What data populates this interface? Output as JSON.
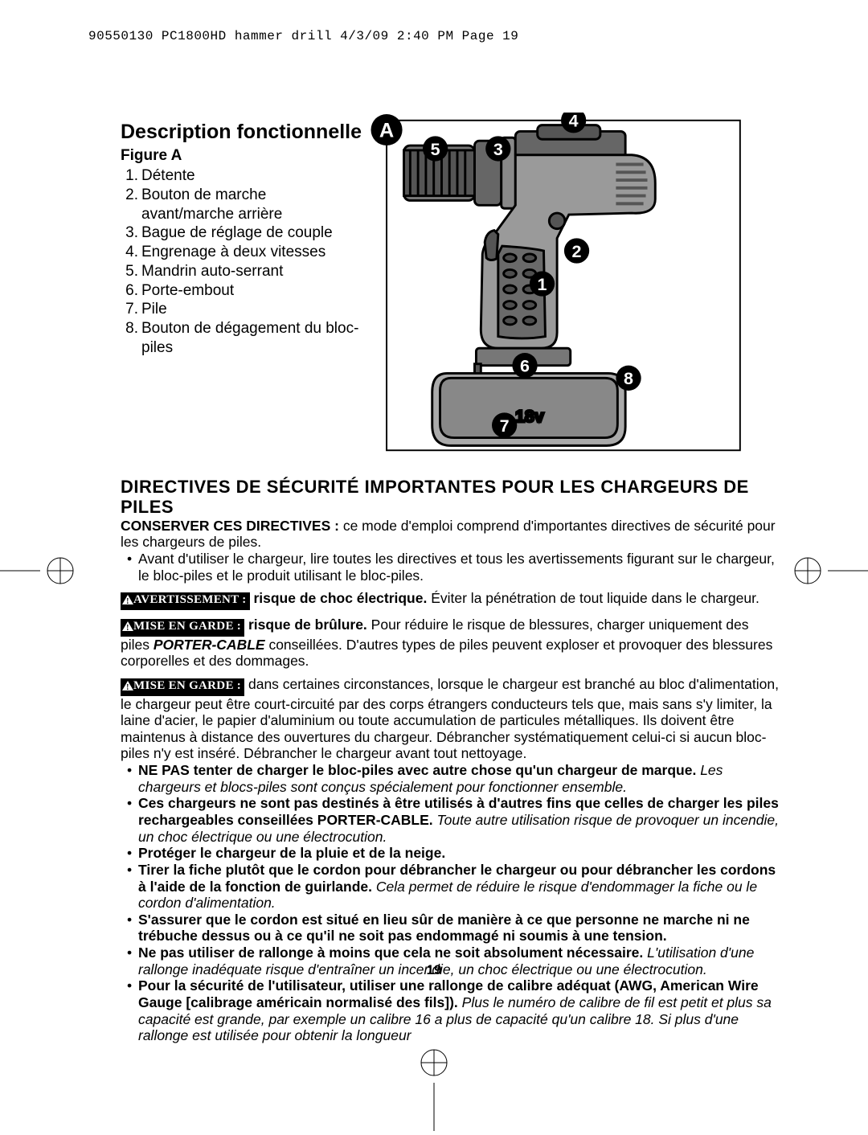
{
  "header": {
    "crop_line": "90550130 PC1800HD hammer drill  4/3/09  2:40 PM  Page 19"
  },
  "description": {
    "title": "Description fonctionnelle",
    "figure_label": "Figure A",
    "parts": [
      "Détente",
      "Bouton de marche avant/marche arrière",
      "Bague de réglage de couple",
      "Engrenage à deux vitesses",
      "Mandrin auto-serrant",
      "Porte-embout",
      "Pile",
      "Bouton de dégagement du bloc-piles"
    ]
  },
  "figure": {
    "panel_label": "A",
    "callouts": [
      "1",
      "2",
      "3",
      "4",
      "5",
      "6",
      "7",
      "8"
    ],
    "battery_label": "18v"
  },
  "safety": {
    "title": "DIRECTIVES DE SÉCURITÉ IMPORTANTES POUR LES CHARGEURS DE PILES",
    "intro_bold": "CONSERVER CES DIRECTIVES :",
    "intro_rest": " ce mode d'emploi comprend d'importantes directives de sécurité pour les chargeurs de piles.",
    "bullet1": "Avant d'utiliser le chargeur, lire toutes les directives et tous les avertissements figurant sur le chargeur, le bloc-piles et le produit utilisant le bloc-piles.",
    "label_avert": "AVERTISSEMENT :",
    "avert_bold": "risque de choc électrique.",
    "avert_rest": " Éviter la pénétration de tout liquide dans le chargeur.",
    "label_meg": "MISE EN GARDE :",
    "meg1_bold": "risque de brûlure.",
    "meg1_pre": "  Pour réduire le risque de blessures, charger uniquement des piles ",
    "meg1_brand": "PORTER-CABLE",
    "meg1_rest": " conseillées. D'autres types de piles peuvent exploser et provoquer des blessures corporelles et des dommages.",
    "meg2": " dans certaines circonstances, lorsque le chargeur est branché au bloc d'alimentation, le chargeur peut être court-circuité par des corps étrangers conducteurs tels que, mais sans s'y limiter, la laine d'acier, le papier d'aluminium ou toute accumulation de particules métalliques. Ils doivent être maintenus à distance des ouvertures du chargeur. Débrancher systématiquement celui-ci si aucun bloc-piles n'y est inséré. Débrancher le chargeur avant tout nettoyage.",
    "bullets": [
      {
        "b": "NE PAS tenter de charger le bloc-piles avec autre chose qu'un chargeur de marque.",
        "i": "Les chargeurs et blocs-piles sont conçus spécialement pour fonctionner ensemble."
      },
      {
        "b": "Ces chargeurs ne sont pas destinés à être utilisés à d'autres fins que celles de charger les piles rechargeables conseillées PORTER-CABLE.",
        "i": " Toute autre utilisation risque de provoquer un incendie, un choc électrique ou une électrocution."
      },
      {
        "b": "Protéger le chargeur de la pluie et de la neige.",
        "i": ""
      },
      {
        "b": "Tirer la fiche plutôt que le cordon pour débrancher le chargeur ou pour débrancher les cordons à l'aide de la fonction de guirlande.",
        "i": " Cela permet de réduire le risque d'endommager la fiche ou le cordon d'alimentation."
      },
      {
        "b": "S'assurer que le cordon est situé en lieu sûr de manière à ce que personne ne marche ni ne trébuche dessus ou à ce qu'il ne soit pas endommagé ni soumis à une tension.",
        "i": ""
      },
      {
        "b": "Ne pas utiliser de rallonge à moins que cela ne soit absolument nécessaire.",
        "i": "L'utilisation d'une rallonge inadéquate risque d'entraîner un incendie, un choc électrique ou une électrocution."
      },
      {
        "b": "Pour la sécurité de l'utilisateur, utiliser une rallonge de calibre adéquat (AWG, American Wire Gauge [calibrage américain normalisé des fils]).",
        "i": " Plus le numéro de calibre de fil est petit et plus sa capacité est grande, par exemple un calibre 16 a plus de capacité qu'un calibre 18. Si plus d'une rallonge est utilisée pour obtenir la longueur"
      }
    ]
  },
  "page_number": "19",
  "colors": {
    "text": "#000000",
    "bg": "#ffffff"
  }
}
